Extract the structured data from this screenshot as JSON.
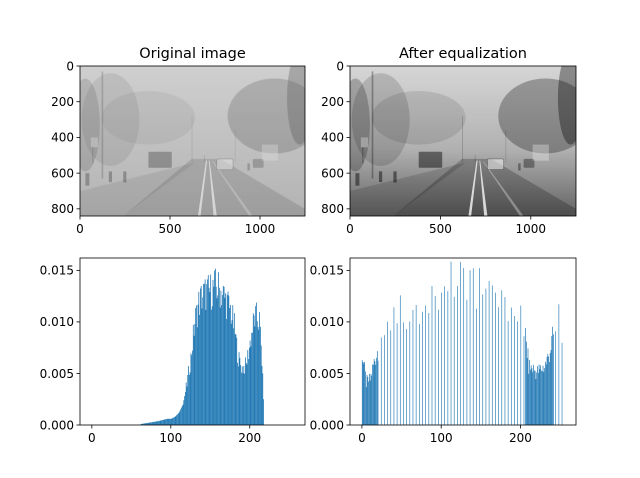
{
  "chart_data": [
    {
      "type": "image",
      "title": "Original image",
      "image": "grayscale foggy road scene (low contrast)",
      "contrast": "low",
      "xlim": [
        0,
        1250
      ],
      "ylim": [
        840,
        0
      ],
      "xticks": [
        0,
        500,
        1000
      ],
      "yticks": [
        0,
        200,
        400,
        600,
        800
      ]
    },
    {
      "type": "image",
      "title": "After equalization",
      "image": "grayscale foggy road scene (equalized, high contrast)",
      "contrast": "high",
      "xlim": [
        0,
        1250
      ],
      "ylim": [
        840,
        0
      ],
      "xticks": [
        0,
        500,
        1000
      ],
      "yticks": [
        0,
        200,
        400,
        600,
        800
      ]
    },
    {
      "type": "bar",
      "title": "",
      "description": "normalized histogram of original image intensities",
      "color": "#1f77b4",
      "xlim": [
        -15,
        270
      ],
      "ylim": [
        0,
        0.0162
      ],
      "xticks": [
        0,
        100,
        200
      ],
      "yticks": [
        "0.000",
        "0.005",
        "0.010",
        "0.015"
      ],
      "envelope_x": [
        62,
        70,
        78,
        85,
        90,
        95,
        100,
        105,
        110,
        115,
        120,
        125,
        130,
        135,
        140,
        145,
        150,
        155,
        160,
        165,
        170,
        175,
        180,
        185,
        190,
        195,
        200,
        205,
        208,
        212,
        216,
        218
      ],
      "envelope_y": [
        0.0001,
        0.0002,
        0.0003,
        0.0004,
        0.0005,
        0.0006,
        0.0006,
        0.0008,
        0.0012,
        0.002,
        0.004,
        0.0065,
        0.01,
        0.0118,
        0.0126,
        0.0128,
        0.013,
        0.0134,
        0.0132,
        0.0128,
        0.012,
        0.0112,
        0.0095,
        0.0065,
        0.0055,
        0.0058,
        0.008,
        0.0102,
        0.0104,
        0.01,
        0.005,
        0.0
      ]
    },
    {
      "type": "bar",
      "title": "",
      "description": "normalized histogram of equalized image intensities",
      "color": "#1f77b4",
      "xlim": [
        -15,
        270
      ],
      "ylim": [
        0,
        0.0162
      ],
      "xticks": [
        0,
        100,
        200
      ],
      "yticks": [
        "0.000",
        "0.005",
        "0.010",
        "0.015"
      ],
      "envelope_x": [
        0,
        5,
        10,
        15,
        20,
        25,
        30,
        35,
        40,
        50,
        60,
        70,
        80,
        90,
        100,
        110,
        120,
        130,
        140,
        150,
        160,
        170,
        180,
        190,
        200,
        205,
        210,
        215,
        220,
        225,
        230,
        235,
        240,
        245,
        250,
        255
      ],
      "envelope_y": [
        0.0072,
        0.0042,
        0.0045,
        0.0062,
        0.0076,
        0.0082,
        0.009,
        0.01,
        0.0116,
        0.0114,
        0.0112,
        0.0116,
        0.0124,
        0.0128,
        0.0128,
        0.0136,
        0.0152,
        0.0138,
        0.0136,
        0.0138,
        0.0132,
        0.0124,
        0.0118,
        0.011,
        0.0105,
        0.0095,
        0.0058,
        0.0056,
        0.0052,
        0.0055,
        0.0058,
        0.0068,
        0.0085,
        0.0102,
        0.0105,
        0.0058
      ]
    }
  ]
}
